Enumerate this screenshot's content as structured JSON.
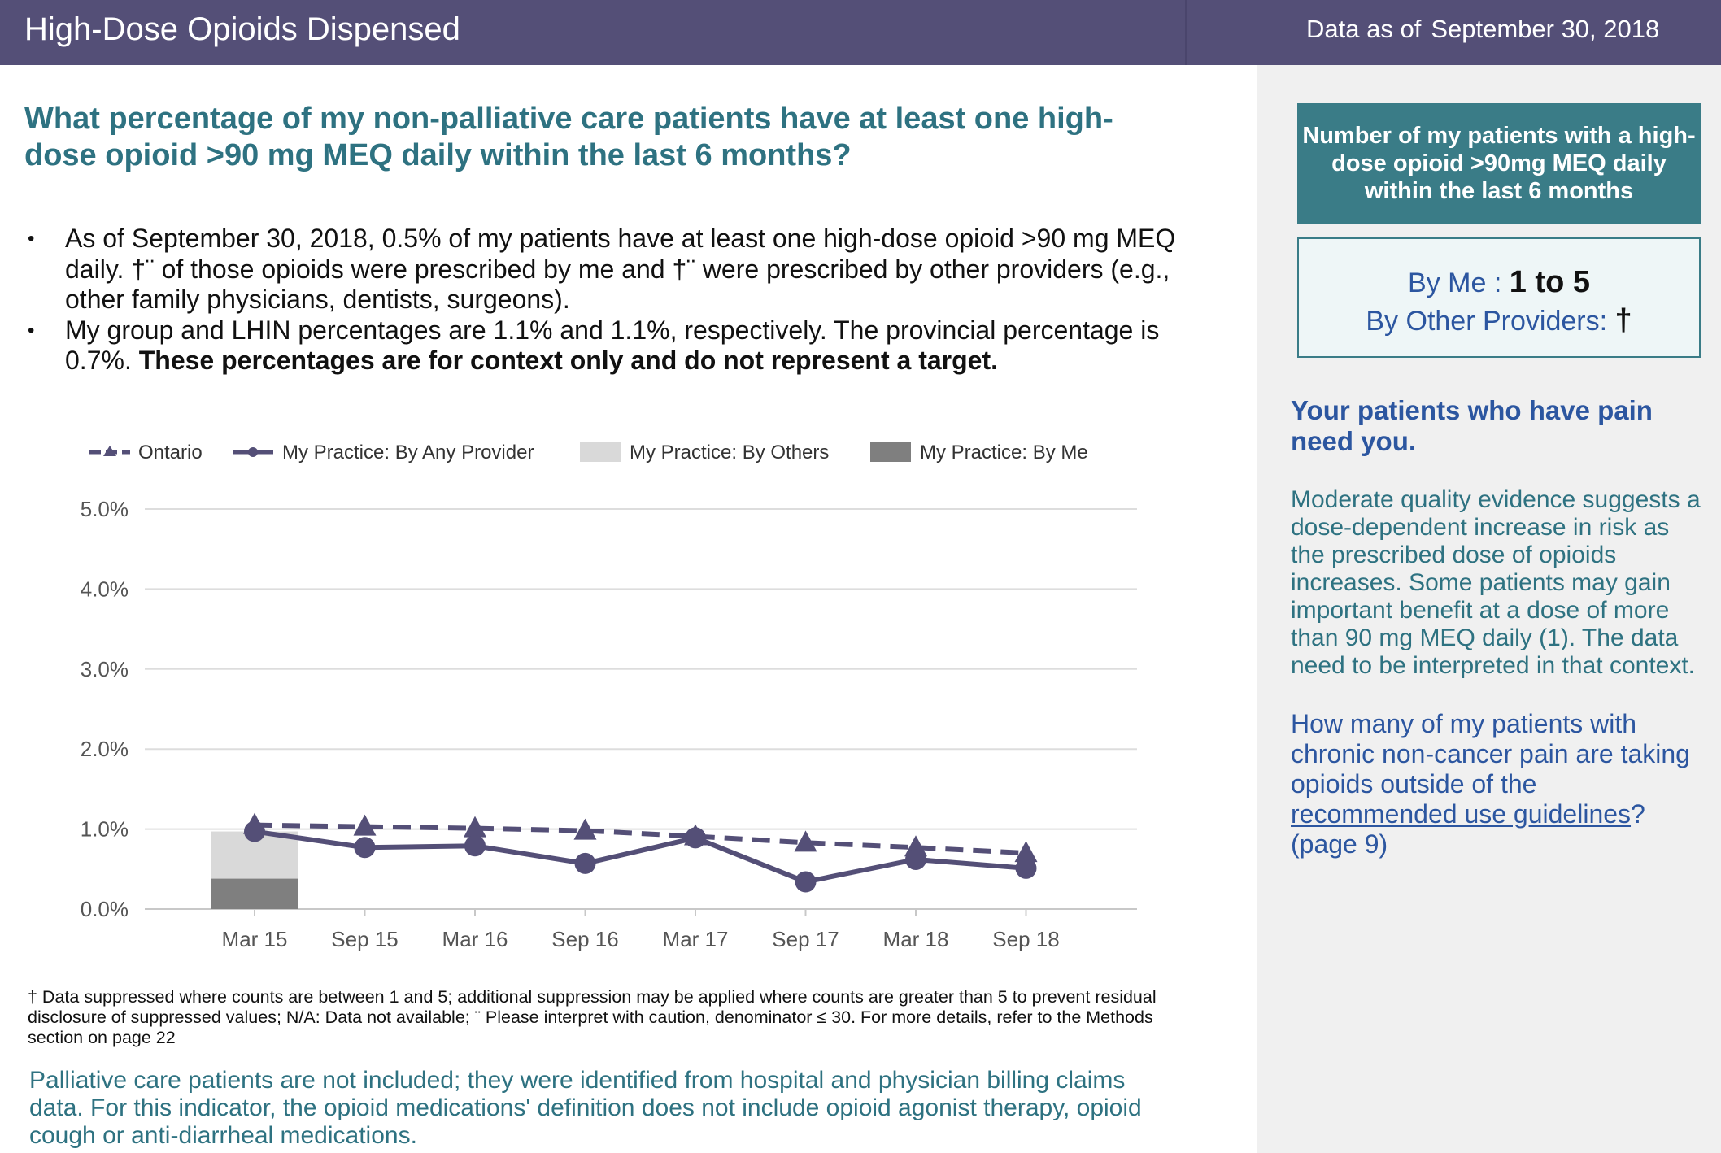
{
  "header": {
    "title": "High-Dose Opioids Dispensed",
    "asof_label": "Data as of",
    "asof_date": "September 30, 2018"
  },
  "question": "What percentage of my non-palliative care patients have at least one high-dose opioid >90 mg MEQ daily within the last 6 months?",
  "bullets": {
    "b1": "As of September 30, 2018, 0.5% of my patients have at least one high-dose opioid >90 mg MEQ daily. †¨ of those opioids were prescribed by me and †¨ were prescribed by other providers (e.g., other family physicians, dentists, surgeons).",
    "b2_plain": "My group and LHIN percentages are 1.1% and 1.1%, respectively. The provincial percentage is 0.7%.",
    "b2_bold": "These percentages are for context only and do not represent a target."
  },
  "chart_data": {
    "type": "line",
    "categories": [
      "Mar 15",
      "Sep 15",
      "Mar 16",
      "Sep 16",
      "Mar 17",
      "Sep 17",
      "Mar 18",
      "Sep 18"
    ],
    "ylim": [
      0,
      5
    ],
    "yticks": [
      "0.0%",
      "1.0%",
      "2.0%",
      "3.0%",
      "4.0%",
      "5.0%"
    ],
    "grid": true,
    "legend_position": "top",
    "series": [
      {
        "name": "Ontario",
        "kind": "dashed-line",
        "marker": "triangle",
        "color": "#544f77",
        "values": [
          1.05,
          1.03,
          1.01,
          0.98,
          0.91,
          0.83,
          0.77,
          0.7
        ]
      },
      {
        "name": "My Practice: By Any Provider",
        "kind": "line",
        "marker": "circle",
        "color": "#544f77",
        "values": [
          0.97,
          0.77,
          0.79,
          0.57,
          0.89,
          0.34,
          0.62,
          0.51
        ]
      },
      {
        "name": "My Practice: By Others",
        "kind": "bar",
        "color": "#d9d9d9",
        "values": [
          0.97,
          null,
          null,
          null,
          null,
          null,
          null,
          null
        ]
      },
      {
        "name": "My Practice: By Me",
        "kind": "bar",
        "color": "#7f7f7f",
        "values": [
          0.38,
          null,
          null,
          null,
          null,
          null,
          null,
          null
        ]
      }
    ]
  },
  "footnote": "† Data suppressed where counts are between 1 and 5; additional suppression may be applied where counts are greater than 5 to prevent residual disclosure of suppressed values; N/A: Data not available; ¨ Please interpret with caution, denominator ≤ 30. For more details, refer to the Methods section on page 22",
  "palliative_note": "Palliative care patients are not included; they were identified from hospital and physician billing claims data. For this indicator, the opioid medications' definition does not include opioid agonist therapy, opioid cough or anti-diarrheal medications.",
  "sidebar": {
    "box_title": "Number of my patients with a high-dose opioid >90mg MEQ daily within the last 6 months",
    "by_me_label": "By Me :",
    "by_me_value": "1 to 5",
    "by_others_label": "By Other Providers:",
    "by_others_value": "†",
    "pain_heading": "Your patients who have pain need you.",
    "pain_body": "Moderate quality evidence suggests a dose-dependent increase in risk as the prescribed dose of opioids increases. Some patients may gain important benefit at a dose of more than 90 mg MEQ daily (1). The data need to be interpreted in that context.",
    "pain_q_prefix": "How many of my patients with chronic non-cancer pain are taking opioids outside of the",
    "pain_q_link": "recommended use guidelines",
    "pain_q_suffix": "?",
    "pain_q_page": "(page 9)"
  },
  "colors": {
    "header": "#544f77",
    "teal": "#2e7281",
    "blue": "#2c56a0",
    "panel": "#f0f0f0"
  }
}
